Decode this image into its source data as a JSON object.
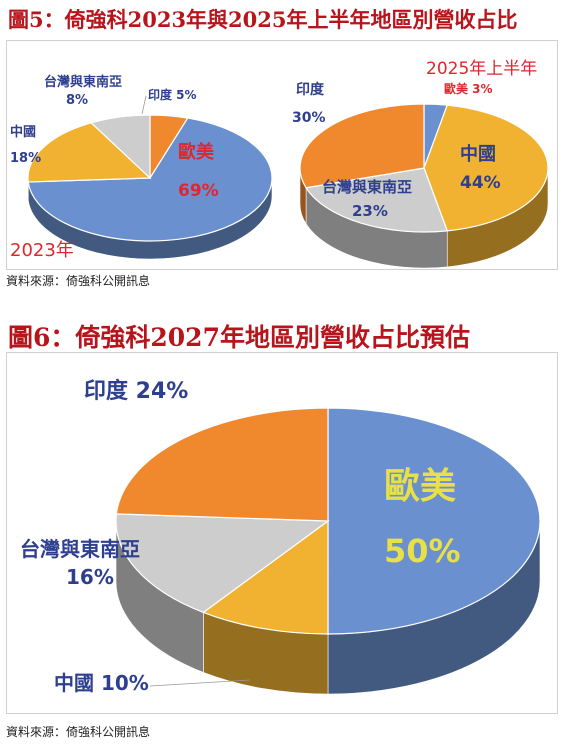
{
  "fig5": {
    "title": "圖5：倚強科2023年與2025年上半年地區別營收占比",
    "source": "資料來源：倚強科公開訊息"
  },
  "fig6": {
    "title": "圖6：倚強科2027年地區別營收占比預估",
    "source": "資料來源：倚強科公開訊息"
  },
  "colors": {
    "blue": "#6a90cf",
    "orange": "#f0892e",
    "yellow": "#f1b232",
    "gray": "#cdcdcd",
    "red": "#e0262d",
    "navy": "#2e3f8f",
    "title_red": "#b8141c"
  },
  "chart_data": [
    {
      "type": "pie",
      "title": "2023年",
      "categories": [
        "歐美",
        "中國",
        "台灣與東南亞",
        "印度"
      ],
      "values": [
        69,
        18,
        8,
        5
      ],
      "labels": [
        "69%",
        "18%",
        "8%",
        "5%"
      ]
    },
    {
      "type": "pie",
      "title": "2025年上半年",
      "categories": [
        "歐美",
        "中國",
        "台灣與東南亞",
        "印度"
      ],
      "values": [
        3,
        44,
        23,
        30
      ],
      "labels": [
        "3%",
        "44%",
        "23%",
        "30%"
      ]
    },
    {
      "type": "pie",
      "title": "",
      "categories": [
        "歐美",
        "中國",
        "台灣與東南亞",
        "印度"
      ],
      "values": [
        50,
        10,
        16,
        24
      ],
      "labels": [
        "50%",
        "10%",
        "16%",
        "24%"
      ]
    }
  ]
}
